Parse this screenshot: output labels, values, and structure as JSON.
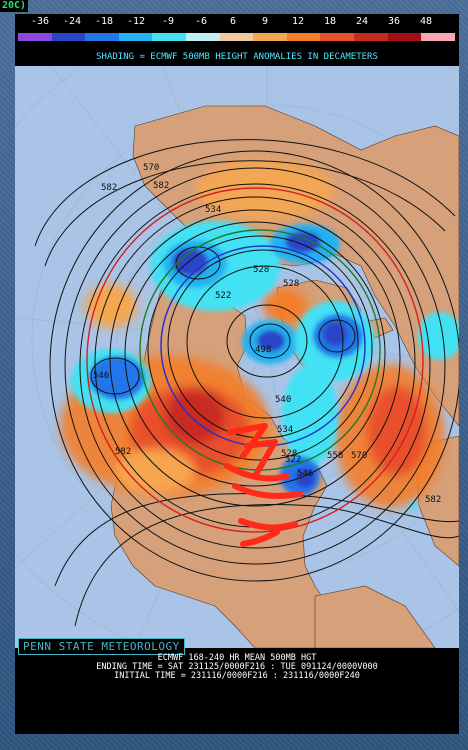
{
  "top_fragment": "20C)",
  "legend": {
    "labels": [
      "-36",
      "-24",
      "-18",
      "-12",
      "-9",
      "-6",
      "6",
      "9",
      "12",
      "18",
      "24",
      "36",
      "48"
    ],
    "colors": [
      "#8a49e0",
      "#2a45c7",
      "#2176ea",
      "#23b2f2",
      "#43e1f3",
      "#bfeef6",
      "#f1c9a0",
      "#f6a64f",
      "#f47d2a",
      "#e8502a",
      "#c92a20",
      "#a40f16",
      "#f7a6b3"
    ],
    "caption": "SHADING = ECMWF 500MB HEIGHT ANOMALIES IN DECAMETERS"
  },
  "map": {
    "colors": {
      "ocean": "#a9c4e6",
      "land": "#d5a07a",
      "grid": "#9fb7d2",
      "contour": "#111111",
      "contour_540": "#1f7a1f",
      "contour_534": "#2330c9",
      "contour_570": "#d62020",
      "annotation": "#ff2a1a"
    },
    "contour_labels": [
      "582",
      "570",
      "582",
      "534",
      "528",
      "522",
      "528",
      "498",
      "546",
      "540",
      "534",
      "528",
      "522",
      "546",
      "558",
      "570",
      "582",
      "582"
    ]
  },
  "credit": "PENN STATE METEOROLOGY",
  "footer": {
    "line1": "ECMWF 168-240 HR MEAN 500MB HGT",
    "line2": "ENDING TIME = SAT 231125/0000F216 : TUE 091124/0000V000",
    "line3": "INITIAL TIME = 231116/0000F216 : 231116/0000F240"
  }
}
